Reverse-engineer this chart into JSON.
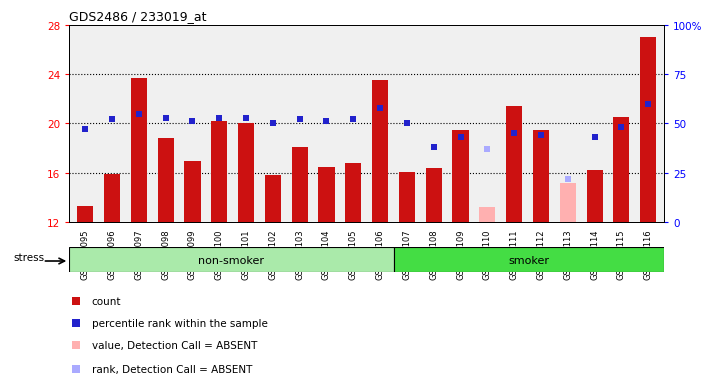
{
  "title": "GDS2486 / 233019_at",
  "samples": [
    "GSM101095",
    "GSM101096",
    "GSM101097",
    "GSM101098",
    "GSM101099",
    "GSM101100",
    "GSM101101",
    "GSM101102",
    "GSM101103",
    "GSM101104",
    "GSM101105",
    "GSM101106",
    "GSM101107",
    "GSM101108",
    "GSM101109",
    "GSM101110",
    "GSM101111",
    "GSM101112",
    "GSM101113",
    "GSM101114",
    "GSM101115",
    "GSM101116"
  ],
  "count_values": [
    13.3,
    15.9,
    23.7,
    18.8,
    17.0,
    20.2,
    20.0,
    15.8,
    18.1,
    16.5,
    16.8,
    23.5,
    16.1,
    16.4,
    19.5,
    null,
    21.4,
    19.5,
    null,
    16.2,
    20.5,
    27.0
  ],
  "rank_values": [
    47,
    52,
    55,
    53,
    51,
    53,
    53,
    50,
    52,
    51,
    52,
    58,
    50,
    38,
    43,
    null,
    45,
    44,
    null,
    43,
    48,
    60
  ],
  "absent_count_values": [
    null,
    null,
    null,
    null,
    null,
    null,
    null,
    null,
    null,
    null,
    null,
    null,
    null,
    null,
    null,
    13.2,
    null,
    null,
    15.2,
    null,
    null,
    null
  ],
  "absent_rank_values": [
    null,
    null,
    null,
    null,
    null,
    null,
    null,
    null,
    null,
    null,
    null,
    null,
    null,
    null,
    null,
    37,
    null,
    null,
    22,
    null,
    null,
    null
  ],
  "non_smoker_count": 12,
  "ylim_left": [
    12,
    28
  ],
  "ylim_right": [
    0,
    100
  ],
  "yticks_left": [
    12,
    16,
    20,
    24,
    28
  ],
  "yticks_right": [
    0,
    25,
    50,
    75,
    100
  ],
  "ytick_right_labels": [
    "0",
    "25",
    "50",
    "75",
    "100%"
  ],
  "bar_color": "#cc1111",
  "rank_color": "#2222cc",
  "absent_bar_color": "#ffb0b0",
  "absent_rank_color": "#aaaaff",
  "non_smoker_bg": "#aaeaaa",
  "smoker_bg": "#44dd44",
  "plot_bg": "#f0f0f0",
  "stress_label": "stress",
  "non_smoker_label": "non-smoker",
  "smoker_label": "smoker",
  "legend_items": [
    {
      "color": "#cc1111",
      "label": "count"
    },
    {
      "color": "#2222cc",
      "label": "percentile rank within the sample"
    },
    {
      "color": "#ffb0b0",
      "label": "value, Detection Call = ABSENT"
    },
    {
      "color": "#aaaaff",
      "label": "rank, Detection Call = ABSENT"
    }
  ]
}
